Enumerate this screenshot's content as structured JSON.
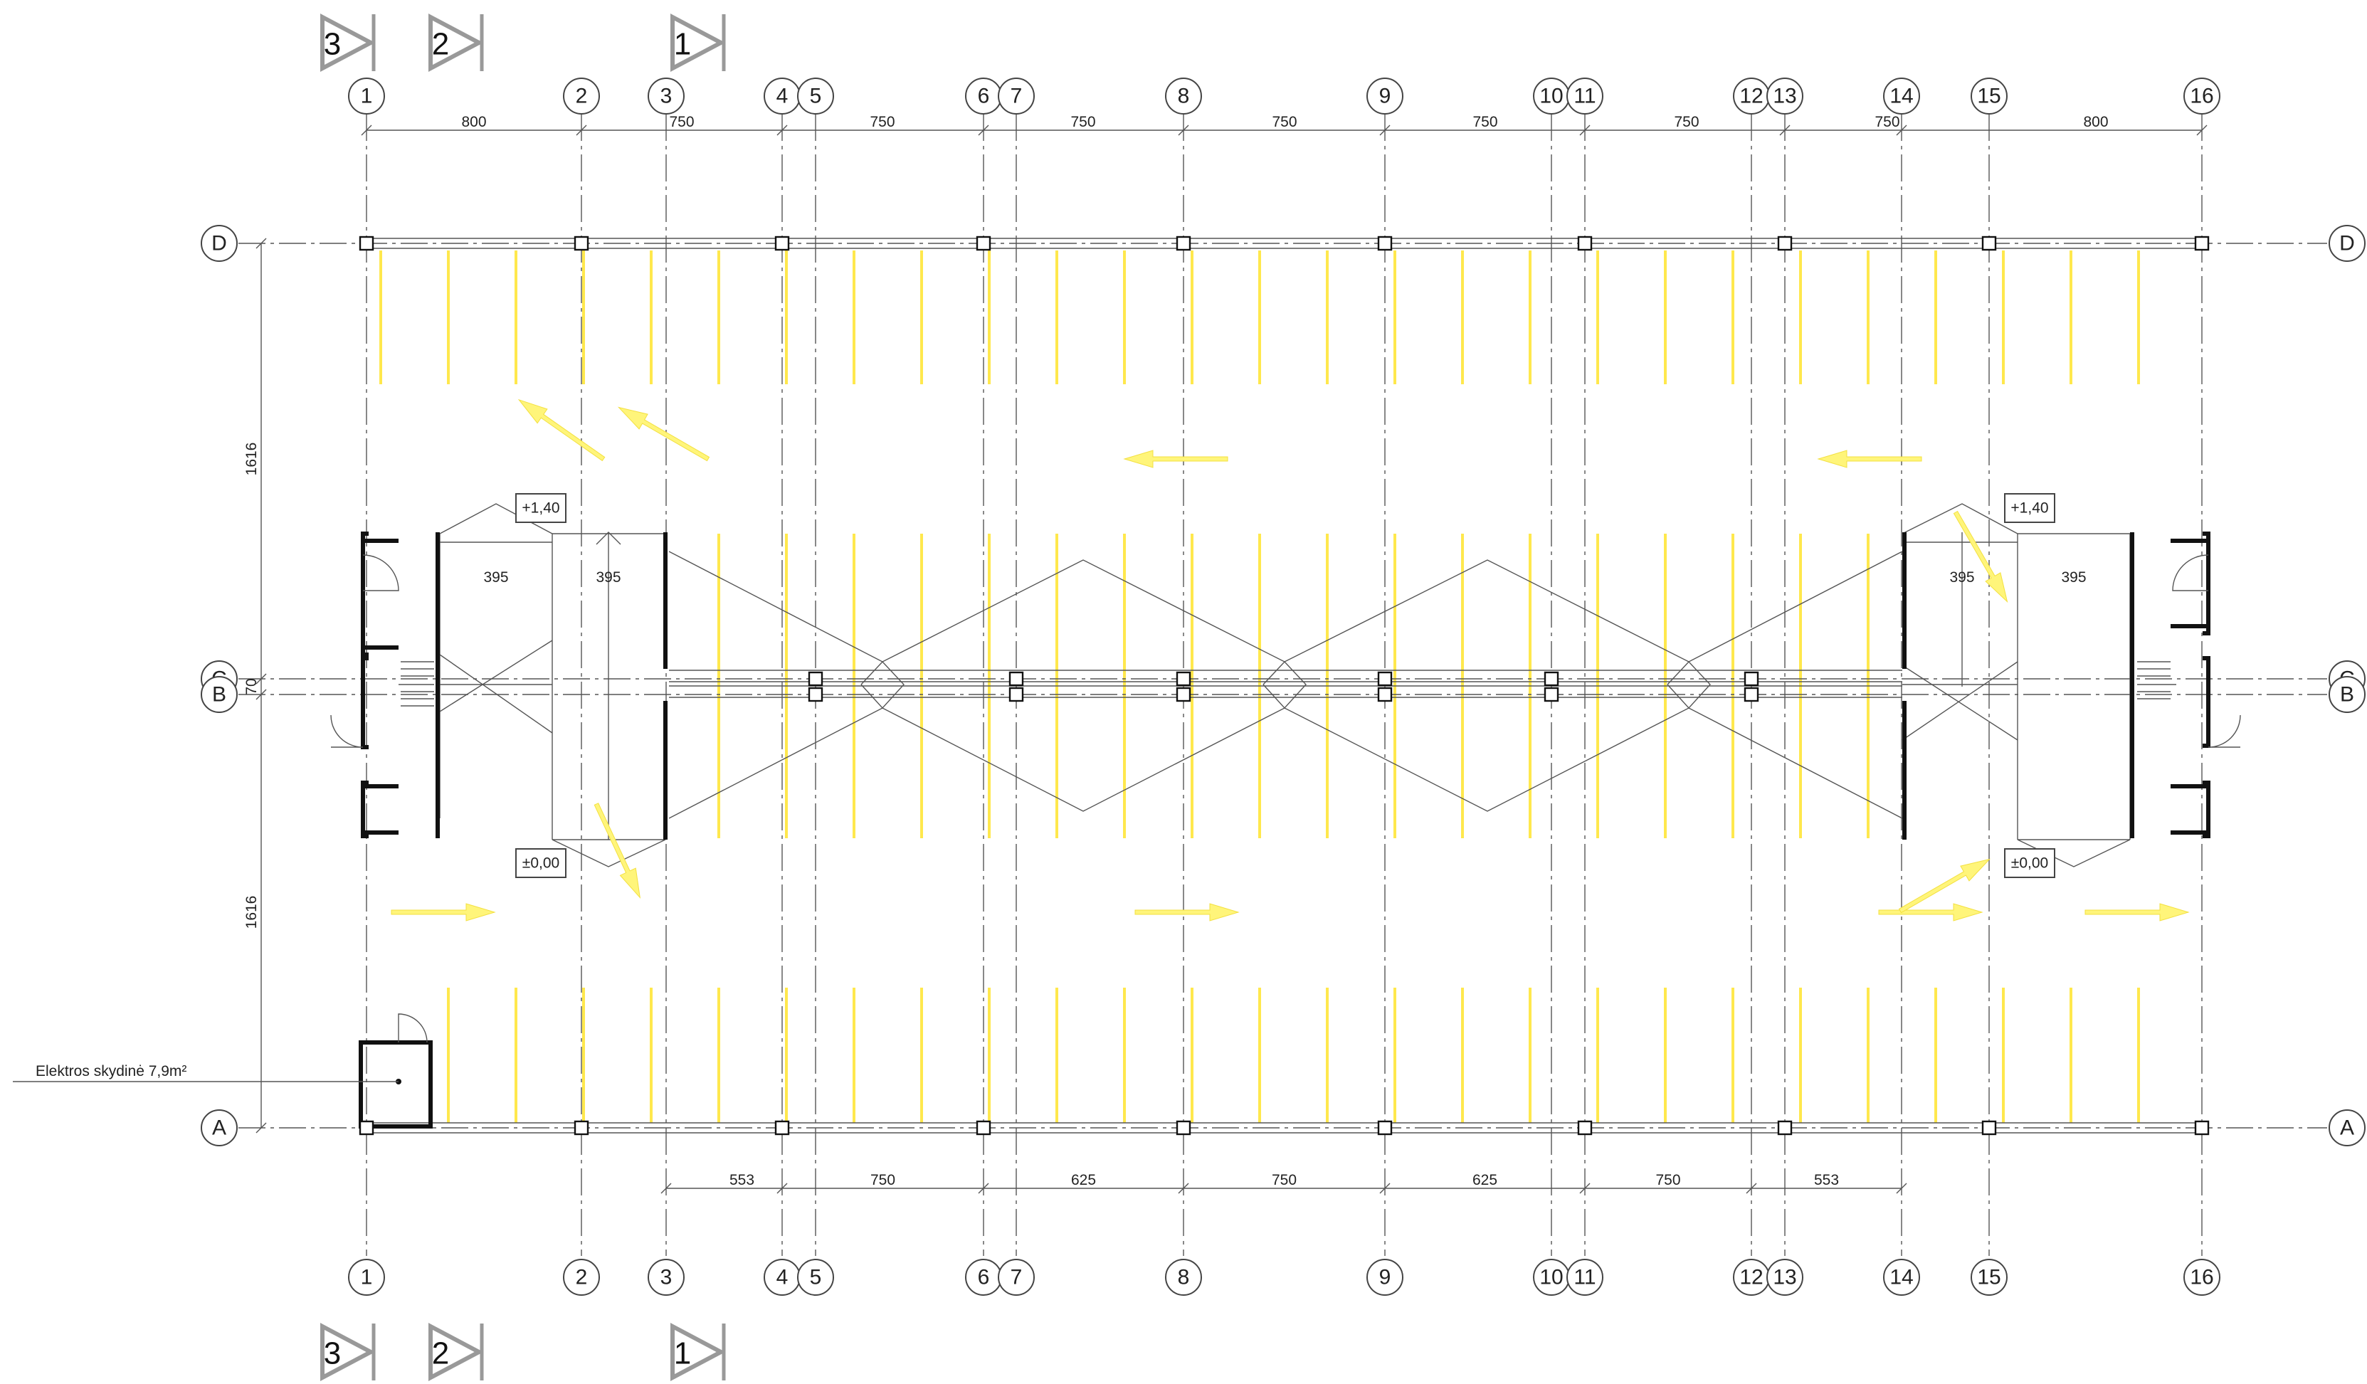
{
  "axes_numeric": [
    {
      "label": "1",
      "x": 1
    },
    {
      "label": "2",
      "x": 2
    },
    {
      "label": "3",
      "x": 3
    },
    {
      "label": "4",
      "x": 4
    },
    {
      "label": "5",
      "x": 5
    },
    {
      "label": "6",
      "x": 6
    },
    {
      "label": "7",
      "x": 7
    },
    {
      "label": "8",
      "x": 8
    },
    {
      "label": "9",
      "x": 9
    },
    {
      "label": "10",
      "x": 10
    },
    {
      "label": "11",
      "x": 11
    },
    {
      "label": "12",
      "x": 12
    },
    {
      "label": "13",
      "x": 13
    },
    {
      "label": "14",
      "x": 14
    },
    {
      "label": "15",
      "x": 15
    },
    {
      "label": "16",
      "x": 16
    }
  ],
  "axes_letters": [
    "D",
    "C",
    "B",
    "A"
  ],
  "dims_top": [
    "800",
    "750",
    "750",
    "750",
    "750",
    "750",
    "750",
    "750",
    "800"
  ],
  "dims_bottom": [
    "553",
    "750",
    "625",
    "750",
    "625",
    "750",
    "553"
  ],
  "dims_left": [
    "1616",
    "70",
    "1616"
  ],
  "dims_ramp": [
    "395",
    "395",
    "395",
    "395"
  ],
  "levels": [
    "+1,40",
    "±0,00",
    "+1,40",
    "±0,00"
  ],
  "room_label": "Elektros skydinė 7,9m²",
  "section_marks": [
    "3",
    "2",
    "1"
  ]
}
